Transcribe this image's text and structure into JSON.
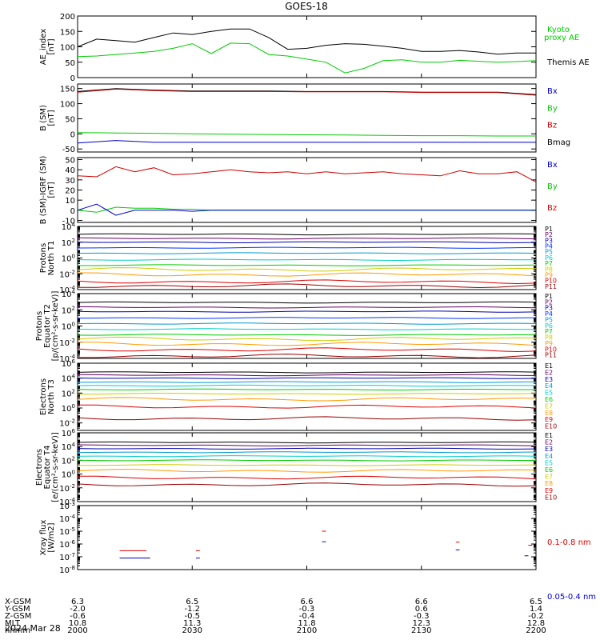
{
  "title": "GOES-18",
  "date_label": "2024 Mar 28",
  "chart_data": [
    {
      "type": "line",
      "ylabel": [
        "AE_index",
        "[nT]"
      ],
      "yscale": "linear",
      "ylim": [
        0,
        200
      ],
      "yticks": [
        0,
        50,
        100,
        150,
        200
      ],
      "ytick_labels": [
        "0",
        "50",
        "100",
        "150",
        "200"
      ],
      "x": [
        0,
        5,
        10,
        15,
        20,
        25,
        30,
        35,
        40,
        45,
        50,
        55,
        60,
        65,
        70,
        75,
        80,
        85,
        90,
        95,
        100,
        105,
        110,
        115,
        120
      ],
      "legend": [
        {
          "label": "Kyoto\nproxy AE",
          "color": "#00cc00"
        },
        {
          "label": "Themis AE",
          "color": "#000000"
        }
      ],
      "series": [
        {
          "name": "Themis AE",
          "color": "#000000",
          "values": [
            100,
            125,
            120,
            115,
            130,
            145,
            140,
            150,
            158,
            158,
            130,
            92,
            95,
            105,
            110,
            108,
            102,
            95,
            85,
            85,
            88,
            83,
            76,
            80,
            80
          ]
        },
        {
          "name": "Kyoto proxy AE",
          "color": "#00cc00",
          "values": [
            68,
            70,
            75,
            80,
            85,
            95,
            110,
            78,
            112,
            110,
            75,
            70,
            60,
            50,
            15,
            30,
            55,
            58,
            50,
            50,
            56,
            53,
            50,
            52,
            55
          ]
        }
      ]
    },
    {
      "type": "line",
      "ylabel": [
        "B (SM)",
        "[nT]"
      ],
      "yscale": "linear",
      "ylim": [
        -60,
        165
      ],
      "yticks": [
        -50,
        0,
        50,
        100,
        150
      ],
      "ytick_labels": [
        "-50",
        "0",
        "50",
        "100",
        "150"
      ],
      "x": [
        0,
        10,
        20,
        30,
        40,
        50,
        60,
        70,
        80,
        90,
        100,
        110,
        120
      ],
      "legend": [
        {
          "label": "Bx",
          "color": "#0000cc"
        },
        {
          "label": "By",
          "color": "#00cc00"
        },
        {
          "label": "Bz",
          "color": "#cc0000"
        },
        {
          "label": "Bmag",
          "color": "#000000"
        }
      ],
      "series": [
        {
          "name": "Bmag",
          "color": "#000000",
          "values": [
            140,
            150,
            145,
            142,
            142,
            142,
            140,
            140,
            140,
            138,
            138,
            138,
            130
          ]
        },
        {
          "name": "Bz",
          "color": "#cc0000",
          "values": [
            138,
            148,
            143,
            140,
            140,
            140,
            139,
            139,
            139,
            137,
            137,
            137,
            128
          ]
        },
        {
          "name": "By",
          "color": "#00cc00",
          "values": [
            4,
            3,
            2,
            0,
            -1,
            -2,
            -3,
            -4,
            -5,
            -6,
            -6,
            -7,
            -7
          ]
        },
        {
          "name": "Bx",
          "color": "#0000cc",
          "values": [
            -30,
            -22,
            -28,
            -28,
            -28,
            -28,
            -28,
            -28,
            -28,
            -28,
            -28,
            -28,
            -28
          ]
        }
      ]
    },
    {
      "type": "line",
      "ylabel": [
        "B (SM)-IGRF (SM)",
        "[nT]"
      ],
      "yscale": "linear",
      "ylim": [
        -12,
        52
      ],
      "yticks": [
        -10,
        0,
        10,
        20,
        30,
        40,
        50
      ],
      "ytick_labels": [
        "-10",
        "0",
        "10",
        "20",
        "30",
        "40",
        "50"
      ],
      "x": [
        0,
        5,
        10,
        15,
        20,
        25,
        30,
        35,
        40,
        45,
        50,
        55,
        60,
        65,
        70,
        75,
        80,
        85,
        90,
        95,
        100,
        105,
        110,
        115,
        120
      ],
      "legend": [
        {
          "label": "Bx",
          "color": "#0000cc"
        },
        {
          "label": "By",
          "color": "#00cc00"
        },
        {
          "label": "Bz",
          "color": "#cc0000"
        }
      ],
      "series": [
        {
          "name": "Bz",
          "color": "#cc0000",
          "values": [
            34,
            33,
            43,
            38,
            42,
            35,
            36,
            38,
            40,
            38,
            37,
            38,
            36,
            38,
            36,
            37,
            38,
            36,
            35,
            34,
            39,
            36,
            36,
            38,
            28
          ]
        },
        {
          "name": "By",
          "color": "#00cc00",
          "values": [
            0,
            -2,
            3,
            2,
            2,
            1,
            1,
            0,
            0,
            0,
            0,
            0,
            0,
            0,
            0,
            0,
            0,
            0,
            0,
            0,
            0,
            0,
            0,
            0,
            0
          ]
        },
        {
          "name": "Bx",
          "color": "#0000cc",
          "values": [
            0,
            6,
            -5,
            0,
            0,
            0,
            -1,
            0,
            0,
            0,
            0,
            0,
            0,
            0,
            0,
            0,
            0,
            0,
            0,
            0,
            0,
            0,
            0,
            0,
            0
          ]
        }
      ]
    },
    {
      "type": "line",
      "ylabel": [
        "Protons",
        "North T1"
      ],
      "yscale": "log",
      "ylim": [
        0.0001,
        10000
      ],
      "yticks": [
        0.0001,
        0.01,
        1,
        100,
        10000
      ],
      "ytick_labels": [
        "10^-4",
        "10^-2",
        "10^0",
        "10^2",
        "10^4"
      ],
      "channels": [
        {
          "name": "P1",
          "color": "#000000",
          "value": 1000
        },
        {
          "name": "P2",
          "color": "#660066",
          "value": 300
        },
        {
          "name": "P3",
          "color": "#0000aa",
          "value": 100
        },
        {
          "name": "P4",
          "color": "#0033ff",
          "value": 20
        },
        {
          "name": "P5",
          "color": "#0099cc",
          "value": 4
        },
        {
          "name": "P6",
          "color": "#00cccc",
          "value": 0.6
        },
        {
          "name": "P7",
          "color": "#00cc00",
          "value": 0.12
        },
        {
          "name": "P8",
          "color": "#cccc00",
          "value": 0.035
        },
        {
          "name": "P9",
          "color": "#ff9900",
          "value": 0.008
        },
        {
          "name": "P10",
          "color": "#dd0000",
          "value": 0.001
        },
        {
          "name": "P11",
          "color": "#990000",
          "value": 0.0003
        }
      ]
    },
    {
      "type": "line",
      "ylabel": [
        "Protons",
        "Equator T2",
        "[p/(cm²-s-sr-keV)]"
      ],
      "yscale": "log",
      "ylim": [
        0.0001,
        10000
      ],
      "yticks": [
        0.0001,
        0.01,
        1,
        100,
        10000
      ],
      "ytick_labels": [
        "10^-4",
        "10^-2",
        "10^0",
        "10^2",
        "10^4"
      ],
      "channels": [
        {
          "name": "P1",
          "color": "#000000",
          "value": 800
        },
        {
          "name": "P2",
          "color": "#660066",
          "value": 200
        },
        {
          "name": "P3",
          "color": "#0000aa",
          "value": 60
        },
        {
          "name": "P4",
          "color": "#0033ff",
          "value": 10
        },
        {
          "name": "P5",
          "color": "#0099cc",
          "value": 2
        },
        {
          "name": "P6",
          "color": "#00cccc",
          "value": 0.4
        },
        {
          "name": "P7",
          "color": "#00cc00",
          "value": 0.08
        },
        {
          "name": "P8",
          "color": "#cccc00",
          "value": 0.025
        },
        {
          "name": "P9",
          "color": "#ff9900",
          "value": 0.006
        },
        {
          "name": "P10",
          "color": "#dd0000",
          "value": 0.0012
        },
        {
          "name": "P11",
          "color": "#990000",
          "value": 0.0002
        }
      ]
    },
    {
      "type": "line",
      "ylabel": [
        "Electrons",
        "North T3"
      ],
      "yscale": "log",
      "ylim": [
        0.001,
        1000000
      ],
      "yticks": [
        0.01,
        1,
        100,
        10000,
        1000000
      ],
      "ytick_labels": [
        "10^-2",
        "10^0",
        "10^2",
        "10^4",
        "10^6"
      ],
      "channels": [
        {
          "name": "E1",
          "color": "#000000",
          "value": 60000
        },
        {
          "name": "E2",
          "color": "#660066",
          "value": 25000
        },
        {
          "name": "E3",
          "color": "#0000aa",
          "value": 10000
        },
        {
          "name": "E4",
          "color": "#0099cc",
          "value": 3000
        },
        {
          "name": "E5",
          "color": "#00cccc",
          "value": 1000
        },
        {
          "name": "E6",
          "color": "#00cc00",
          "value": 300
        },
        {
          "name": "E7",
          "color": "#cccc00",
          "value": 80
        },
        {
          "name": "E8",
          "color": "#ff9900",
          "value": 15
        },
        {
          "name": "E9",
          "color": "#dd0000",
          "value": 1.5
        },
        {
          "name": "E10",
          "color": "#990000",
          "value": 0.04
        }
      ]
    },
    {
      "type": "line",
      "ylabel": [
        "Electrons",
        "Equator T4",
        "[e/(cm²-s-sr-keV)]"
      ],
      "yscale": "log",
      "ylim": [
        0.0001,
        1000000
      ],
      "yticks": [
        0.0001,
        0.01,
        1,
        100,
        10000,
        1000000
      ],
      "ytick_labels": [
        "10^-4",
        "10^-2",
        "10^0",
        "10^2",
        "10^4",
        "10^6"
      ],
      "channels": [
        {
          "name": "E1",
          "color": "#000000",
          "value": 40000
        },
        {
          "name": "E2",
          "color": "#660066",
          "value": 15000
        },
        {
          "name": "E3",
          "color": "#0000aa",
          "value": 5000
        },
        {
          "name": "E4",
          "color": "#0099cc",
          "value": 1500
        },
        {
          "name": "E5",
          "color": "#00cccc",
          "value": 400
        },
        {
          "name": "E6",
          "color": "#00cc00",
          "value": 100
        },
        {
          "name": "E7",
          "color": "#cccc00",
          "value": 20
        },
        {
          "name": "E8",
          "color": "#ff9900",
          "value": 3
        },
        {
          "name": "E9",
          "color": "#dd0000",
          "value": 0.3
        },
        {
          "name": "E10",
          "color": "#990000",
          "value": 0.03
        }
      ]
    },
    {
      "type": "line",
      "ylabel": [
        "Xray flux",
        "[W/m2]"
      ],
      "yscale": "log",
      "ylim": [
        1e-08,
        0.001
      ],
      "yticks": [
        1e-08,
        1e-07,
        1e-06,
        1e-05,
        0.0001,
        0.001
      ],
      "ytick_labels": [
        "10^-8",
        "10^-7",
        "10^-6",
        "10^-5",
        "10^-4",
        "10^-3"
      ],
      "legend": [
        {
          "label": "0.1-0.8 nm",
          "color": "#dd0000"
        },
        {
          "label": "0.05-0.4 nm",
          "color": "#0000cc"
        }
      ],
      "segments": [
        {
          "series": "0.1-0.8 nm",
          "color": "#dd0000",
          "x0": 11,
          "x1": 18,
          "y": 3e-07
        },
        {
          "series": "0.1-0.8 nm",
          "color": "#dd0000",
          "x0": 31,
          "x1": 32,
          "y": 3e-07
        },
        {
          "series": "0.1-0.8 nm",
          "color": "#dd0000",
          "x0": 64,
          "x1": 65,
          "y": 1e-05
        },
        {
          "series": "0.1-0.8 nm",
          "color": "#dd0000",
          "x0": 99,
          "x1": 100,
          "y": 1.4e-06
        },
        {
          "series": "0.1-0.8 nm",
          "color": "#dd0000",
          "x0": 118,
          "x1": 119,
          "y": 8e-07
        },
        {
          "series": "0.05-0.4 nm",
          "color": "#0000cc",
          "x0": 11,
          "x1": 19,
          "y": 8e-08
        },
        {
          "series": "0.05-0.4 nm",
          "color": "#0000cc",
          "x0": 31,
          "x1": 32,
          "y": 8e-08
        },
        {
          "series": "0.05-0.4 nm",
          "color": "#0000cc",
          "x0": 64,
          "x1": 65,
          "y": 1.5e-06
        },
        {
          "series": "0.05-0.4 nm",
          "color": "#0000cc",
          "x0": 99,
          "x1": 100,
          "y": 3.5e-07
        },
        {
          "series": "0.05-0.4 nm",
          "color": "#0000cc",
          "x0": 117,
          "x1": 118,
          "y": 1.2e-07
        }
      ]
    }
  ],
  "x_axis": {
    "row_labels": [
      "X-GSM",
      "Y-GSM",
      "Z-GSM",
      "MLT",
      "hhmm"
    ],
    "ticks": [
      {
        "x": 0,
        "values": [
          "6.3",
          "-2.0",
          "-0.6",
          "10.8",
          "2000"
        ]
      },
      {
        "x": 30,
        "values": [
          "6.5",
          "-1.2",
          "-0.5",
          "11.3",
          "2030"
        ]
      },
      {
        "x": 60,
        "values": [
          "6.6",
          "-0.3",
          "-0.4",
          "11.8",
          "2100"
        ]
      },
      {
        "x": 90,
        "values": [
          "6.6",
          "0.6",
          "-0.3",
          "12.3",
          "2130"
        ]
      },
      {
        "x": 120,
        "values": [
          "6.5",
          "1.4",
          "-0.2",
          "12.8",
          "2200"
        ]
      }
    ]
  }
}
